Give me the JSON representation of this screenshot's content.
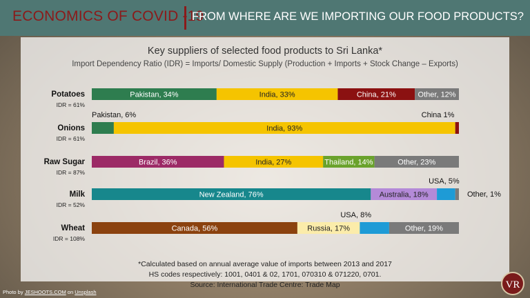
{
  "header": {
    "left_title": "ECONOMICS OF COVID -19",
    "right_title": "FROM WHERE ARE WE IMPORTING OUR FOOD PRODUCTS?"
  },
  "chart_data": {
    "type": "bar",
    "orientation": "horizontal-stacked",
    "title": "Key suppliers of selected food products to Sri Lanka*",
    "subtitle": "Import Dependency Ratio (IDR) = Imports/ Domestic Supply (Production + Imports + Stock Change – Exports)",
    "unit": "%",
    "products": [
      {
        "name": "Potatoes",
        "idr": "IDR = 61%",
        "segments": [
          {
            "label": "Pakistan, 34%",
            "value": 34,
            "color": "#2e7d4f"
          },
          {
            "label": "India, 33%",
            "value": 33,
            "color": "#f5c400"
          },
          {
            "label": "China, 21%",
            "value": 21,
            "color": "#8b1111"
          },
          {
            "label": "Other, 12%",
            "value": 12,
            "color": "#7a7a7a"
          }
        ]
      },
      {
        "name": "Onions",
        "idr": "IDR = 61%",
        "segments": [
          {
            "label": "Pakistan, 6%",
            "value": 6,
            "color": "#2e7d4f"
          },
          {
            "label": "India, 93%",
            "value": 93,
            "color": "#f5c400"
          },
          {
            "label": "China  1%",
            "value": 1,
            "color": "#8b1111"
          }
        ]
      },
      {
        "name": "Raw Sugar",
        "idr": "IDR = 87%",
        "segments": [
          {
            "label": "Brazil, 36%",
            "value": 36,
            "color": "#9c2a66"
          },
          {
            "label": "India, 27%",
            "value": 27,
            "color": "#f5c400"
          },
          {
            "label": "Thailand, 14%",
            "value": 14,
            "color": "#6aa22c"
          },
          {
            "label": "Other, 23%",
            "value": 23,
            "color": "#7a7a7a"
          }
        ]
      },
      {
        "name": "Milk",
        "idr": "IDR = 52%",
        "segments": [
          {
            "label": "New Zealand, 76%",
            "value": 76,
            "color": "#17878c"
          },
          {
            "label": "Australia, 18%",
            "value": 18,
            "color": "#b48ad8"
          },
          {
            "label": "USA, 5%",
            "value": 5,
            "color": "#1e9bd6"
          },
          {
            "label": "Other, 1%",
            "value": 1,
            "color": "#7a7a7a"
          }
        ]
      },
      {
        "name": "Wheat",
        "idr": "IDR = 108%",
        "segments": [
          {
            "label": "Canada, 56%",
            "value": 56,
            "color": "#8b420f"
          },
          {
            "label": "Russia, 17%",
            "value": 17,
            "color": "#fbecaa"
          },
          {
            "label": "USA, 8%",
            "value": 8,
            "color": "#1e9bd6"
          },
          {
            "label": "Other, 19%",
            "value": 19,
            "color": "#7a7a7a"
          }
        ]
      }
    ]
  },
  "footnotes": [
    "*Calculated based on annual average value of imports between 2013 and 2017",
    "HS codes respectively: 1001, 0401 & 02, 1701, 070310 & 071220, 0701.",
    "Source: International Trade Centre: Trade Map"
  ],
  "credit": {
    "prefix": "Photo by ",
    "author": "JESHOOTS.COM",
    "middle": " on ",
    "site": "Unsplash"
  },
  "logo_text": "VR"
}
